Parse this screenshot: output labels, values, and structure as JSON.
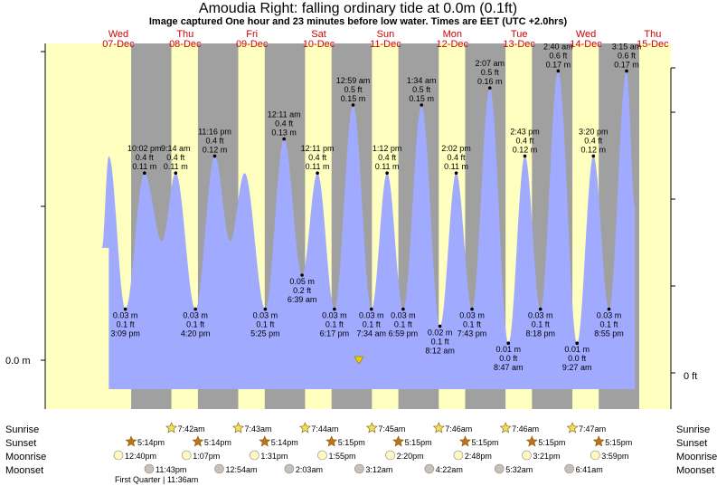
{
  "chart_data": {
    "type": "area",
    "title": "Amoudia Right: falling  ordinary tide at 0.0m (0.1ft)",
    "subtitle": "Image captured One hour and 23 minutes before low water. Times are EET (UTC +2.0hrs)",
    "day_labels": [
      {
        "day": "Wed",
        "date": "07-Dec"
      },
      {
        "day": "Thu",
        "date": "08-Dec"
      },
      {
        "day": "Fri",
        "date": "09-Dec"
      },
      {
        "day": "Sat",
        "date": "10-Dec"
      },
      {
        "day": "Sun",
        "date": "11-Dec"
      },
      {
        "day": "Mon",
        "date": "12-Dec"
      },
      {
        "day": "Tue",
        "date": "13-Dec"
      },
      {
        "day": "Wed",
        "date": "14-Dec"
      },
      {
        "day": "Thu",
        "date": "15-Dec"
      }
    ],
    "y_left_label": "0.0 m",
    "y_right_label": "0 ft",
    "x_unit": "hours since 00:00 Wed 07-Dec (EET)",
    "y_unit": "m",
    "ylim": [
      0,
      0.2
    ],
    "tides": [
      {
        "t": 9.2,
        "h": 0.12
      },
      {
        "t": 15.15,
        "h": 0.03,
        "labels": [
          "0.03 m",
          "0.1 ft",
          "3:09 pm"
        ]
      },
      {
        "t": 22.03,
        "h": 0.11,
        "labels": [
          "10:02 pm",
          "0.4 ft",
          "0.11 m"
        ]
      },
      {
        "t": 28.3,
        "h": 0.07
      },
      {
        "t": 33.23,
        "h": 0.11,
        "labels": [
          "9:14 am",
          "0.4 ft",
          "0.11 m"
        ]
      },
      {
        "t": 40.33,
        "h": 0.03,
        "labels": [
          "0.03 m",
          "0.1 ft",
          "4:20 pm"
        ]
      },
      {
        "t": 47.27,
        "h": 0.12,
        "labels": [
          "11:16 pm",
          "0.4 ft",
          "0.12 m"
        ]
      },
      {
        "t": 52.8,
        "h": 0.07
      },
      {
        "t": 58.0,
        "h": 0.11
      },
      {
        "t": 65.42,
        "h": 0.03,
        "labels": [
          "0.03 m",
          "0.1 ft",
          "5:25 pm"
        ]
      },
      {
        "t": 72.18,
        "h": 0.13,
        "labels": [
          "12:11 am",
          "0.4 ft",
          "0.13 m"
        ]
      },
      {
        "t": 78.65,
        "h": 0.05,
        "labels": [
          "0.05 m",
          "0.2 ft",
          "6:39 am"
        ]
      },
      {
        "t": 84.18,
        "h": 0.11,
        "labels": [
          "12:11 pm",
          "0.4 ft",
          "0.11 m"
        ]
      },
      {
        "t": 90.28,
        "h": 0.03,
        "labels": [
          "0.03 m",
          "0.1 ft",
          "6:17 pm"
        ]
      },
      {
        "t": 96.98,
        "h": 0.15,
        "labels": [
          "12:59 am",
          "0.5 ft",
          "0.15 m"
        ]
      },
      {
        "t": 103.57,
        "h": 0.03,
        "labels": [
          "0.03 m",
          "0.1 ft",
          "7:34 am"
        ]
      },
      {
        "t": 109.2,
        "h": 0.11,
        "labels": [
          "1:12 pm",
          "0.4 ft",
          "0.11 m"
        ]
      },
      {
        "t": 114.98,
        "h": 0.03,
        "labels": [
          "0.03 m",
          "0.1 ft",
          "6:59 pm"
        ]
      },
      {
        "t": 121.57,
        "h": 0.15,
        "labels": [
          "1:34 am",
          "0.5 ft",
          "0.15 m"
        ]
      },
      {
        "t": 128.2,
        "h": 0.02,
        "labels": [
          "0.02 m",
          "0.1 ft",
          "8:12 am"
        ]
      },
      {
        "t": 134.03,
        "h": 0.11,
        "labels": [
          "2:02 pm",
          "0.4 ft",
          "0.11 m"
        ]
      },
      {
        "t": 139.72,
        "h": 0.03,
        "labels": [
          "0.03 m",
          "0.1 ft",
          "7:43 pm"
        ]
      },
      {
        "t": 146.12,
        "h": 0.16,
        "labels": [
          "2:07 am",
          "0.5 ft",
          "0.16 m"
        ]
      },
      {
        "t": 152.78,
        "h": 0.01,
        "labels": [
          "0.01 m",
          "0.0 ft",
          "8:47 am"
        ]
      },
      {
        "t": 158.72,
        "h": 0.12,
        "labels": [
          "2:43 pm",
          "0.4 ft",
          "0.12 m"
        ]
      },
      {
        "t": 164.3,
        "h": 0.03,
        "labels": [
          "0.03 m",
          "0.1 ft",
          "8:18 pm"
        ]
      },
      {
        "t": 170.67,
        "h": 0.17,
        "labels": [
          "2:40 am",
          "0.6 ft",
          "0.17 m"
        ]
      },
      {
        "t": 177.45,
        "h": 0.01,
        "labels": [
          "0.01 m",
          "0.0 ft",
          "9:27 am"
        ]
      },
      {
        "t": 183.33,
        "h": 0.12,
        "labels": [
          "3:20 pm",
          "0.4 ft",
          "0.12 m"
        ]
      },
      {
        "t": 188.92,
        "h": 0.03,
        "labels": [
          "0.03 m",
          "0.1 ft",
          "8:55 pm"
        ]
      },
      {
        "t": 195.25,
        "h": 0.17,
        "labels": [
          "3:15 am",
          "0.6 ft",
          "0.17 m"
        ]
      }
    ],
    "sunrise": [
      "7:42am",
      "7:43am",
      "7:44am",
      "7:45am",
      "7:46am",
      "7:46am",
      "7:47am"
    ],
    "sunset": [
      "5:14pm",
      "5:14pm",
      "5:14pm",
      "5:15pm",
      "5:15pm",
      "5:15pm",
      "5:15pm",
      "5:15pm"
    ],
    "moonrise": [
      "12:40pm",
      "1:07pm",
      "1:31pm",
      "1:55pm",
      "2:20pm",
      "2:48pm",
      "3:21pm",
      "3:59pm"
    ],
    "moonset": [
      "11:43pm",
      "12:54am",
      "2:03am",
      "3:12am",
      "4:22am",
      "5:32am",
      "6:41am"
    ],
    "moon_phase": "First Quarter | 11:36am",
    "row_labels": {
      "sunrise": "Sunrise",
      "sunset": "Sunset",
      "moonrise": "Moonrise",
      "moonset": "Moonset"
    },
    "colors": {
      "tide": "#a0aaff",
      "day": "#ffffc0",
      "night": "#a0a0a0",
      "label": "#d00000",
      "marker": "#f0d000"
    }
  }
}
